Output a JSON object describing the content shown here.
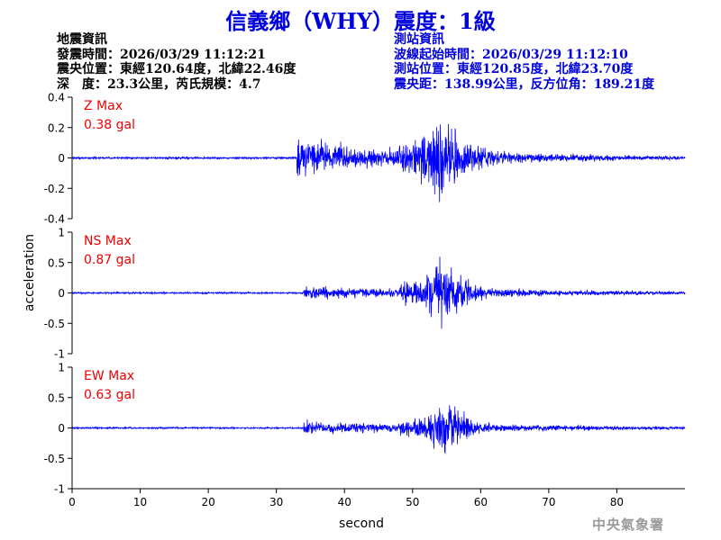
{
  "header": {
    "title": "信義鄉（WHY）震度：1級",
    "title_color": "#0000dd",
    "left_info": [
      "地震資訊",
      "發震時間：2026/03/29 11:12:21",
      "震央位置：東經120.64度，北緯22.46度",
      "深　度：23.3公里，芮氏規模：4.7"
    ],
    "right_info": [
      "測站資訊",
      "波線起始時間：2026/03/29 11:12:10",
      "測站位置：東經120.85度，北緯23.70度",
      "震央距：138.99公里，反方位角：189.21度"
    ],
    "right_info_color": "#0000dd"
  },
  "footer": {
    "agency": "中央氣象署",
    "agency_color": "#9a9a9a"
  },
  "chart_data": {
    "type": "line",
    "trace_color": "#0000ff",
    "label_color": "#ee0000",
    "xlabel": "second",
    "ylabel": "acceleration",
    "xlim": [
      0,
      90
    ],
    "xticks": [
      0,
      10,
      20,
      30,
      40,
      50,
      60,
      70,
      80
    ],
    "panels": [
      {
        "name": "Z Max",
        "max_label": "0.38 gal",
        "ylim": [
          -0.4,
          0.4
        ],
        "yticks": [
          0.4,
          0.2,
          0,
          -0.2,
          -0.4
        ],
        "ytick_labels": [
          "0.4",
          "0.2",
          "0",
          "-0.2",
          "-0.4"
        ]
      },
      {
        "name": "NS Max",
        "max_label": "0.87 gal",
        "ylim": [
          -1,
          1
        ],
        "yticks": [
          1,
          0.5,
          0,
          -0.5,
          -1
        ],
        "ytick_labels": [
          "1",
          "0.5",
          "0",
          "-0.5",
          "-1"
        ]
      },
      {
        "name": "EW Max",
        "max_label": "0.63 gal",
        "ylim": [
          -1,
          1
        ],
        "yticks": [
          1,
          0.5,
          0,
          -0.5,
          -1
        ],
        "ytick_labels": [
          "1",
          "0.5",
          "0",
          "-0.5",
          "-1"
        ]
      }
    ]
  }
}
